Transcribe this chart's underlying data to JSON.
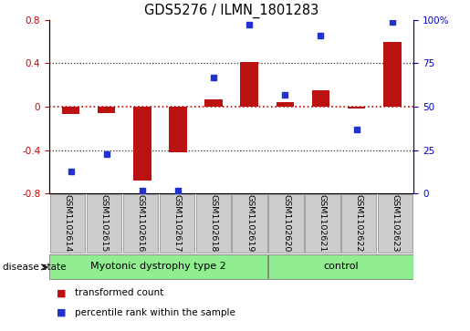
{
  "title": "GDS5276 / ILMN_1801283",
  "samples": [
    "GSM1102614",
    "GSM1102615",
    "GSM1102616",
    "GSM1102617",
    "GSM1102618",
    "GSM1102619",
    "GSM1102620",
    "GSM1102621",
    "GSM1102622",
    "GSM1102623"
  ],
  "transformed_count": [
    -0.07,
    -0.06,
    -0.68,
    -0.42,
    0.07,
    0.41,
    0.04,
    0.15,
    -0.02,
    0.6
  ],
  "percentile_rank": [
    13,
    23,
    2,
    2,
    67,
    97,
    57,
    91,
    37,
    99
  ],
  "group1_end": 6,
  "group1_label": "Myotonic dystrophy type 2",
  "group2_label": "control",
  "group_color": "#90EE90",
  "sample_box_color": "#CCCCCC",
  "bar_color": "#BB1111",
  "dot_color": "#2233CC",
  "ylim_left": [
    -0.8,
    0.8
  ],
  "ylim_right": [
    0,
    100
  ],
  "yticks_left": [
    -0.8,
    -0.4,
    0.0,
    0.4,
    0.8
  ],
  "ytick_labels_left": [
    "-0.8",
    "-0.4",
    "0",
    "0.4",
    "0.8"
  ],
  "yticks_right": [
    0,
    25,
    50,
    75,
    100
  ],
  "ytick_labels_right": [
    "0",
    "25",
    "50",
    "75",
    "100%"
  ],
  "disease_state_label": "disease state",
  "legend_items": [
    {
      "label": "transformed count",
      "color": "#BB1111"
    },
    {
      "label": "percentile rank within the sample",
      "color": "#2233CC"
    }
  ],
  "hline_zero_color": "#CC0000",
  "dotted_color": "#333333",
  "bg_color": "#FFFFFF",
  "tick_color_left": "#CC0000",
  "tick_color_right": "#0000CC",
  "bar_width": 0.5,
  "xlim": [
    -0.6,
    9.6
  ]
}
